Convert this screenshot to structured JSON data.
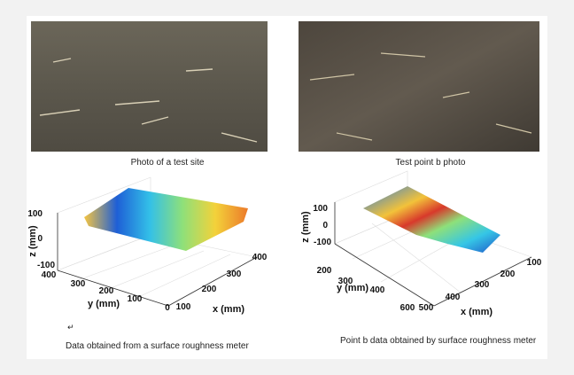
{
  "panels": [
    {
      "photo_caption": "Photo of a test site",
      "plot": {
        "z_label": "z (mm)",
        "z_ticks": [
          "100",
          "0",
          "-100"
        ],
        "y_label": "y (mm)",
        "y_ticks": [
          "400",
          "300",
          "200",
          "100",
          "0"
        ],
        "x_label": "x (mm)",
        "x_ticks": [
          "100",
          "200",
          "300",
          "400"
        ]
      },
      "mark": "↵",
      "plot_caption": "Data obtained from a surface roughness meter"
    },
    {
      "photo_caption": "Test point b photo",
      "plot": {
        "z_label": "z (mm)",
        "z_ticks": [
          "100",
          "0",
          "-100"
        ],
        "y_label": "y (mm)",
        "y_ticks": [
          "200",
          "300",
          "400",
          "600"
        ],
        "x_label": "x (mm)",
        "x_ticks": [
          "500",
          "400",
          "300",
          "200",
          "100"
        ]
      },
      "plot_caption": "Point b data obtained by surface roughness meter"
    }
  ]
}
